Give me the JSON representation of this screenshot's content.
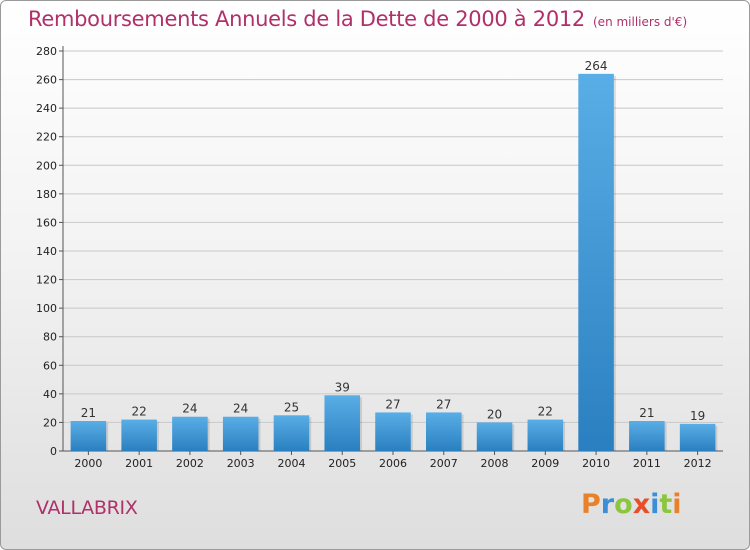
{
  "title": "Remboursements Annuels de la Dette de 2000 à 2012",
  "unit_note": "(en milliers d'€)",
  "city": "VALLABRIX",
  "logo": {
    "text": "Proxiti",
    "letters": [
      {
        "ch": "P",
        "color": "#e8812a"
      },
      {
        "ch": "r",
        "color": "#3a8fd8"
      },
      {
        "ch": "o",
        "color": "#8cc63f"
      },
      {
        "ch": "x",
        "color": "#e84e2a"
      },
      {
        "ch": "i",
        "color": "#3a8fd8"
      },
      {
        "ch": "t",
        "color": "#8cc63f"
      },
      {
        "ch": "i",
        "color": "#e8812a"
      }
    ]
  },
  "colors": {
    "bar_top": "#5aaee6",
    "bar_bottom": "#2a7fc0",
    "title": "#b0306a",
    "grid": "#c8c8c8"
  },
  "chart_data": {
    "type": "bar",
    "categories": [
      "2000",
      "2001",
      "2002",
      "2003",
      "2004",
      "2005",
      "2006",
      "2007",
      "2008",
      "2009",
      "2010",
      "2011",
      "2012"
    ],
    "values": [
      21,
      22,
      24,
      24,
      25,
      39,
      27,
      27,
      20,
      22,
      264,
      21,
      19
    ],
    "ylim": [
      0,
      280
    ],
    "yticks": [
      0,
      20,
      40,
      60,
      80,
      100,
      120,
      140,
      160,
      180,
      200,
      220,
      240,
      260,
      280
    ],
    "grid": true
  }
}
